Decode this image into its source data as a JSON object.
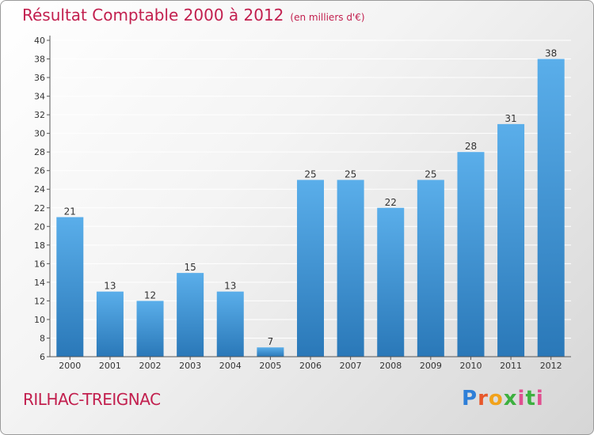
{
  "header": {
    "title": "Résultat Comptable 2000 à 2012",
    "subtitle": "(en milliers d'€)"
  },
  "footer": {
    "commune": "RILHAC-TREIGNAC",
    "brand": "Proxiti"
  },
  "colors": {
    "title": "#c21f4e",
    "bar_top": "#5aaeea",
    "bar_bottom": "#2a78b8",
    "grid": "#ffffff"
  },
  "chart_data": {
    "type": "bar",
    "title": "Résultat Comptable 2000 à 2012",
    "subtitle": "(en milliers d'€)",
    "xlabel": "",
    "ylabel": "",
    "categories": [
      "2000",
      "2001",
      "2002",
      "2003",
      "2004",
      "2005",
      "2006",
      "2007",
      "2008",
      "2009",
      "2010",
      "2011",
      "2012"
    ],
    "values": [
      21,
      13,
      12,
      15,
      13,
      7,
      25,
      25,
      22,
      25,
      28,
      31,
      38
    ],
    "ylim": [
      6,
      40
    ],
    "yticks": [
      6,
      8,
      10,
      12,
      14,
      16,
      18,
      20,
      22,
      24,
      26,
      28,
      30,
      32,
      34,
      36,
      38,
      40
    ],
    "grid": true
  }
}
